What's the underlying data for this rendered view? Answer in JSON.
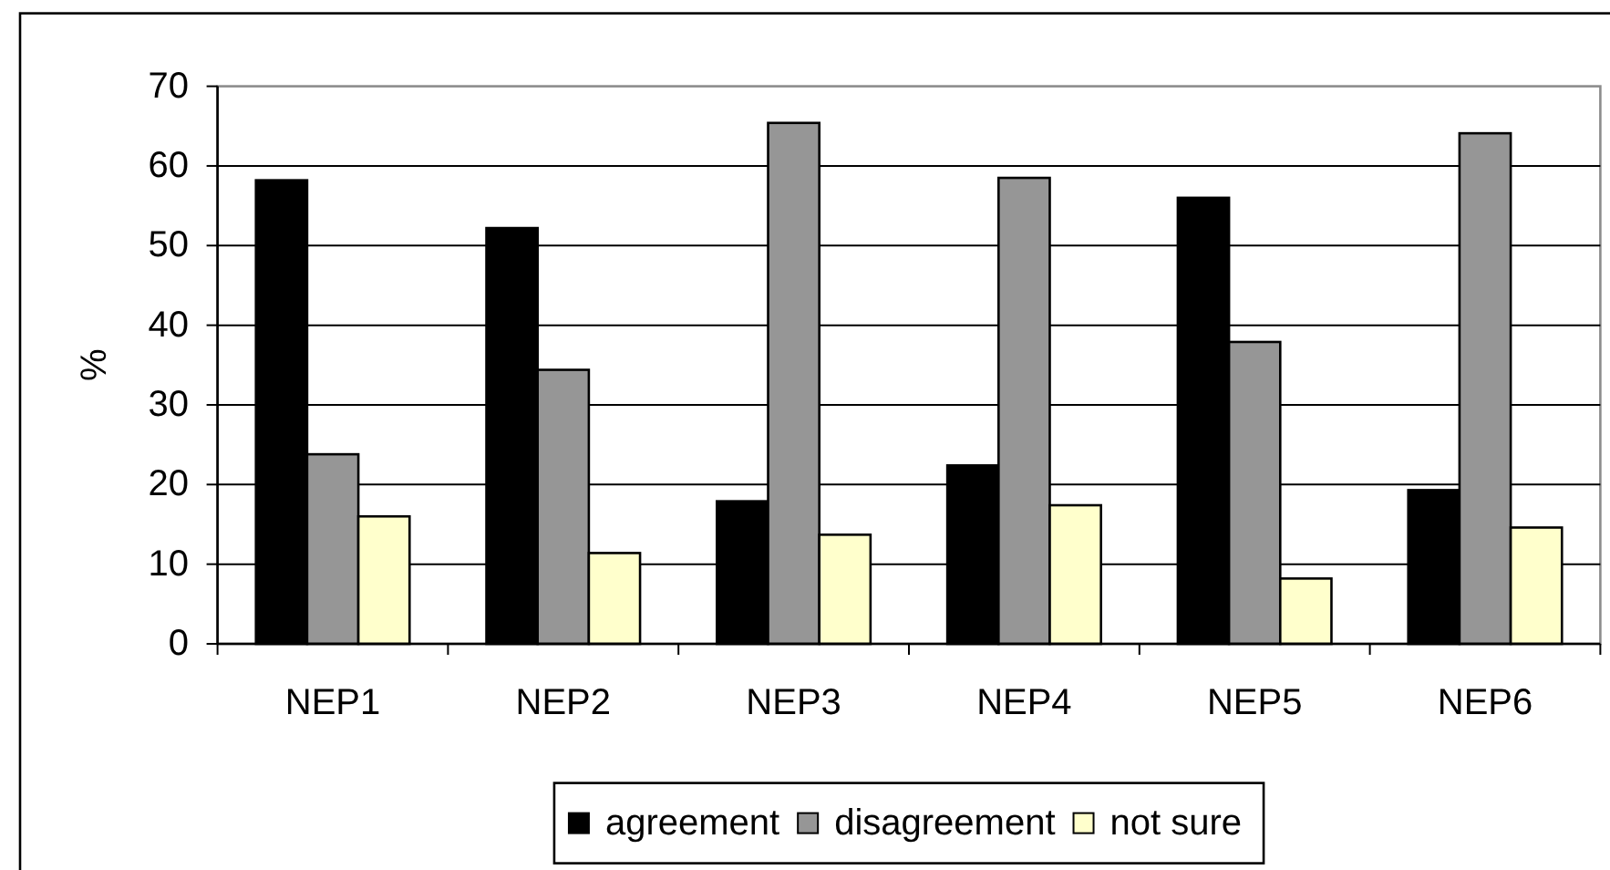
{
  "chart_data": {
    "type": "bar",
    "ylabel": "%",
    "categories": [
      "NEP1",
      "NEP2",
      "NEP3",
      "NEP4",
      "NEP5",
      "NEP6"
    ],
    "series": [
      {
        "name": "agreement",
        "color": "#000000",
        "values": [
          58.2,
          52.2,
          17.9,
          22.4,
          56.0,
          19.3
        ]
      },
      {
        "name": "disagreement",
        "color": "#969696",
        "values": [
          23.8,
          34.4,
          65.4,
          58.5,
          37.9,
          64.1
        ]
      },
      {
        "name": "not sure",
        "color": "#ffffcc",
        "values": [
          16.0,
          11.4,
          13.7,
          17.4,
          8.2,
          14.6
        ]
      }
    ],
    "ylim": [
      0,
      70
    ],
    "yticks": [
      0,
      10,
      20,
      30,
      40,
      50,
      60,
      70
    ],
    "grid": "y",
    "legend": "bottom"
  }
}
